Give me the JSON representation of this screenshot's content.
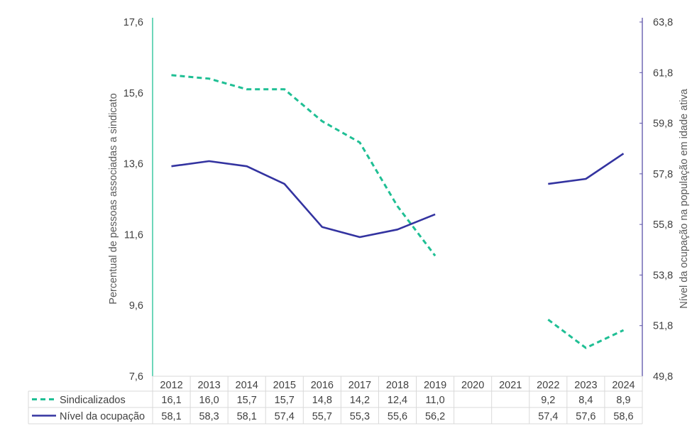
{
  "chart_data": {
    "type": "line",
    "categories": [
      "2012",
      "2013",
      "2014",
      "2015",
      "2016",
      "2017",
      "2018",
      "2019",
      "2020",
      "2021",
      "2022",
      "2023",
      "2024"
    ],
    "ylabel": "Percentual de pessoas associadas a sindicato",
    "y2label": "Nível da ocupação na população em idade ativa",
    "ylim": [
      7.6,
      17.6
    ],
    "y2lim": [
      49.8,
      63.8
    ],
    "y_ticks": [
      "7,6",
      "9,6",
      "11,6",
      "13,6",
      "15,6",
      "17,6"
    ],
    "y2_ticks": [
      "49,8",
      "51,8",
      "53,8",
      "55,8",
      "57,8",
      "59,8",
      "61,8",
      "63,8"
    ],
    "legend_placement": "data-table",
    "series": [
      {
        "name": "Sindicalizados",
        "axis": "left",
        "style": "dashed",
        "color": "#1fbf94",
        "values": [
          16.1,
          16.0,
          15.7,
          15.7,
          14.8,
          14.2,
          12.4,
          11.0,
          null,
          null,
          9.2,
          8.4,
          8.9
        ],
        "labels": [
          "16,1",
          "16,0",
          "15,7",
          "15,7",
          "14,8",
          "14,2",
          "12,4",
          "11,0",
          "",
          "",
          "9,2",
          "8,4",
          "8,9"
        ]
      },
      {
        "name": "Nível da ocupação",
        "axis": "right",
        "style": "solid",
        "color": "#3333a0",
        "values": [
          58.1,
          58.3,
          58.1,
          57.4,
          55.7,
          55.3,
          55.6,
          56.2,
          null,
          null,
          57.4,
          57.6,
          58.6
        ],
        "labels": [
          "58,1",
          "58,3",
          "58,1",
          "57,4",
          "55,7",
          "55,3",
          "55,6",
          "56,2",
          "",
          "",
          "57,4",
          "57,6",
          "58,6"
        ]
      }
    ]
  }
}
